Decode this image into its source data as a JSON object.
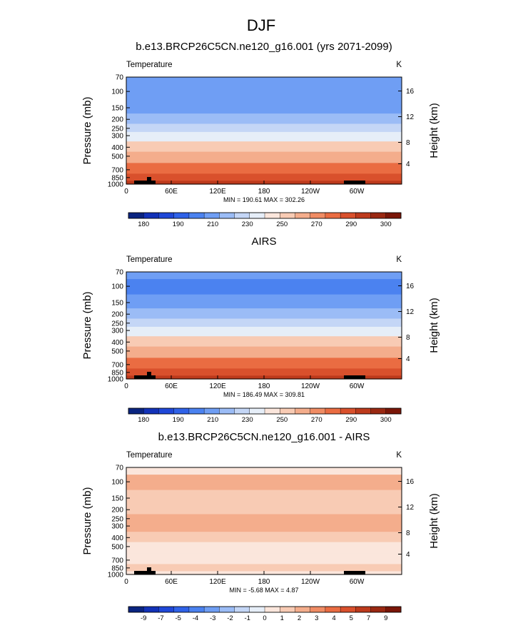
{
  "figure": {
    "title": "DJF"
  },
  "chart_data": [
    {
      "type": "heatmap",
      "title": "b.e13.BRCP26C5CN.ne120_g16.001 (yrs 2071-2099)",
      "left_label": "Temperature",
      "right_label": "K",
      "ylabel": "Pressure (mb)",
      "ylabel_right": "Height (km)",
      "x_ticks": [
        "0",
        "60E",
        "120E",
        "180",
        "120W",
        "60W"
      ],
      "y_ticks": [
        "70",
        "100",
        "150",
        "200",
        "250",
        "300",
        "400",
        "500",
        "700",
        "850",
        "1000"
      ],
      "y_ticks_right": [
        "16",
        "12",
        "8",
        "4"
      ],
      "stats": "MIN = 190.61  MAX = 302.26",
      "colorbar": {
        "labels": [
          "180",
          "190",
          "210",
          "230",
          "250",
          "270",
          "290",
          "300"
        ],
        "colors": [
          "#0a2480",
          "#1232b8",
          "#1f48d8",
          "#2f62e8",
          "#4b82f0",
          "#6f9ef4",
          "#9bbcf6",
          "#c4d6f6",
          "#e6eef8",
          "#fbe6dc",
          "#f8cbb4",
          "#f4ad8c",
          "#f08c64",
          "#ea6c42",
          "#d9502c",
          "#bd3a1c",
          "#9a2812",
          "#7a1608"
        ]
      },
      "profile": [
        {
          "p": 70,
          "v": 214
        },
        {
          "p": 100,
          "v": 208
        },
        {
          "p": 150,
          "v": 212
        },
        {
          "p": 200,
          "v": 220
        },
        {
          "p": 250,
          "v": 228
        },
        {
          "p": 300,
          "v": 236
        },
        {
          "p": 400,
          "v": 252
        },
        {
          "p": 500,
          "v": 262
        },
        {
          "p": 700,
          "v": 276
        },
        {
          "p": 850,
          "v": 284
        },
        {
          "p": 1000,
          "v": 290
        }
      ]
    },
    {
      "type": "heatmap",
      "title": "AIRS",
      "left_label": "Temperature",
      "right_label": "K",
      "ylabel": "Pressure (mb)",
      "ylabel_right": "Height (km)",
      "x_ticks": [
        "0",
        "60E",
        "120E",
        "180",
        "120W",
        "60W"
      ],
      "y_ticks": [
        "70",
        "100",
        "150",
        "200",
        "250",
        "300",
        "400",
        "500",
        "700",
        "850",
        "1000"
      ],
      "y_ticks_right": [
        "16",
        "12",
        "8",
        "4"
      ],
      "stats": "MIN = 186.49  MAX = 309.81",
      "colorbar": {
        "labels": [
          "180",
          "190",
          "210",
          "230",
          "250",
          "270",
          "290",
          "300"
        ],
        "colors": [
          "#0a2480",
          "#1232b8",
          "#1f48d8",
          "#2f62e8",
          "#4b82f0",
          "#6f9ef4",
          "#9bbcf6",
          "#c4d6f6",
          "#e6eef8",
          "#fbe6dc",
          "#f8cbb4",
          "#f4ad8c",
          "#f08c64",
          "#ea6c42",
          "#d9502c",
          "#bd3a1c",
          "#9a2812",
          "#7a1608"
        ]
      },
      "profile": [
        {
          "p": 70,
          "v": 212
        },
        {
          "p": 100,
          "v": 206
        },
        {
          "p": 150,
          "v": 212
        },
        {
          "p": 200,
          "v": 220
        },
        {
          "p": 250,
          "v": 228
        },
        {
          "p": 300,
          "v": 236
        },
        {
          "p": 400,
          "v": 250
        },
        {
          "p": 500,
          "v": 262
        },
        {
          "p": 700,
          "v": 276
        },
        {
          "p": 850,
          "v": 284
        },
        {
          "p": 1000,
          "v": 292
        }
      ]
    },
    {
      "type": "heatmap",
      "title": "b.e13.BRCP26C5CN.ne120_g16.001 - AIRS",
      "left_label": "Temperature",
      "right_label": "K",
      "ylabel": "Pressure (mb)",
      "ylabel_right": "Height (km)",
      "x_ticks": [
        "0",
        "60E",
        "120E",
        "180",
        "120W",
        "60W"
      ],
      "y_ticks": [
        "70",
        "100",
        "150",
        "200",
        "250",
        "300",
        "400",
        "500",
        "700",
        "850",
        "1000"
      ],
      "y_ticks_right": [
        "16",
        "12",
        "8",
        "4"
      ],
      "stats": "MIN = -5.68  MAX =  4.87",
      "colorbar": {
        "labels": [
          "-9",
          "-7",
          "-5",
          "-4",
          "-3",
          "-2",
          "-1",
          "0",
          "1",
          "2",
          "3",
          "4",
          "5",
          "7",
          "9"
        ],
        "colors": [
          "#0a2480",
          "#1232b8",
          "#1f48d8",
          "#2f62e8",
          "#4b82f0",
          "#6f9ef4",
          "#9bbcf6",
          "#c4d6f6",
          "#e6eef8",
          "#fbe6dc",
          "#f8cbb4",
          "#f4ad8c",
          "#f08c64",
          "#ea6c42",
          "#d9502c",
          "#bd3a1c",
          "#9a2812",
          "#7a1608"
        ]
      },
      "profile": [
        {
          "p": 70,
          "v": 0.5
        },
        {
          "p": 100,
          "v": 3
        },
        {
          "p": 150,
          "v": 2
        },
        {
          "p": 200,
          "v": 1.5
        },
        {
          "p": 250,
          "v": 2.5
        },
        {
          "p": 300,
          "v": 3
        },
        {
          "p": 400,
          "v": 1.5
        },
        {
          "p": 500,
          "v": 0.5
        },
        {
          "p": 700,
          "v": 0.5
        },
        {
          "p": 850,
          "v": 1.5
        },
        {
          "p": 1000,
          "v": 1
        }
      ]
    }
  ]
}
